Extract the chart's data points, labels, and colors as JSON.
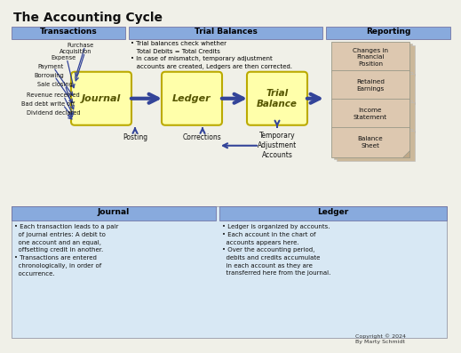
{
  "title": "The Accounting Cycle",
  "bg_color": "#f0f0e8",
  "header_bg": "#88aadd",
  "box_fill_yellow": "#ffffaa",
  "box_stroke": "#bbaa00",
  "arrow_color": "#334499",
  "reporting_fill": "#ddc8b0",
  "reporting_stroke": "#aaaaaa",
  "bottom_panel_bg": "#d8e8f4",
  "bottom_header_bg": "#88aadd",
  "section_headers": [
    "Transactions",
    "Trial Balances",
    "Reporting"
  ],
  "transaction_items": [
    "Purchase",
    "Acquisition",
    "Expense",
    "Payment",
    "Borrowing",
    "Sale closing",
    "Revenue received",
    "Bad debt write off",
    "Dividend declared"
  ],
  "flow_boxes": [
    "Journal",
    "Ledger",
    "Trial\nBalance"
  ],
  "reporting_boxes": [
    "Changes in\nFinancial\nPosition",
    "Retained\nEarnings",
    "Income\nStatement",
    "Balance\nSheet"
  ],
  "below_labels": [
    "Posting",
    "Corrections",
    "Temporary\nAdjustment\nAccounts"
  ],
  "bottom_headers": [
    "Journal",
    "Ledger"
  ],
  "journal_bullets": [
    "Each transaction leads to a pair\nof journal entries: A debit to\none account and an equal,\noffsetting credit in another.",
    "Transactions are entered\nchronologically, in order of\noccurrence."
  ],
  "ledger_bullets": [
    "Ledger is organized by accounts.",
    "Each account in the chart of\naccounts appears here.",
    "Over the accounting period,\ndebits and credits accumulate\nin each account as they are\ntransferred here from the journal."
  ],
  "trial_balance_line1": "Trial balances check whether",
  "trial_balance_line2": "   Total Debits = Total Credits",
  "trial_balance_line3": "In case of mismatch, temporary adjustment",
  "trial_balance_line4": "   accounts are created, Ledgers are then corrected.",
  "copyright": "Copyright © 2024\nBy Marty Schmidt"
}
